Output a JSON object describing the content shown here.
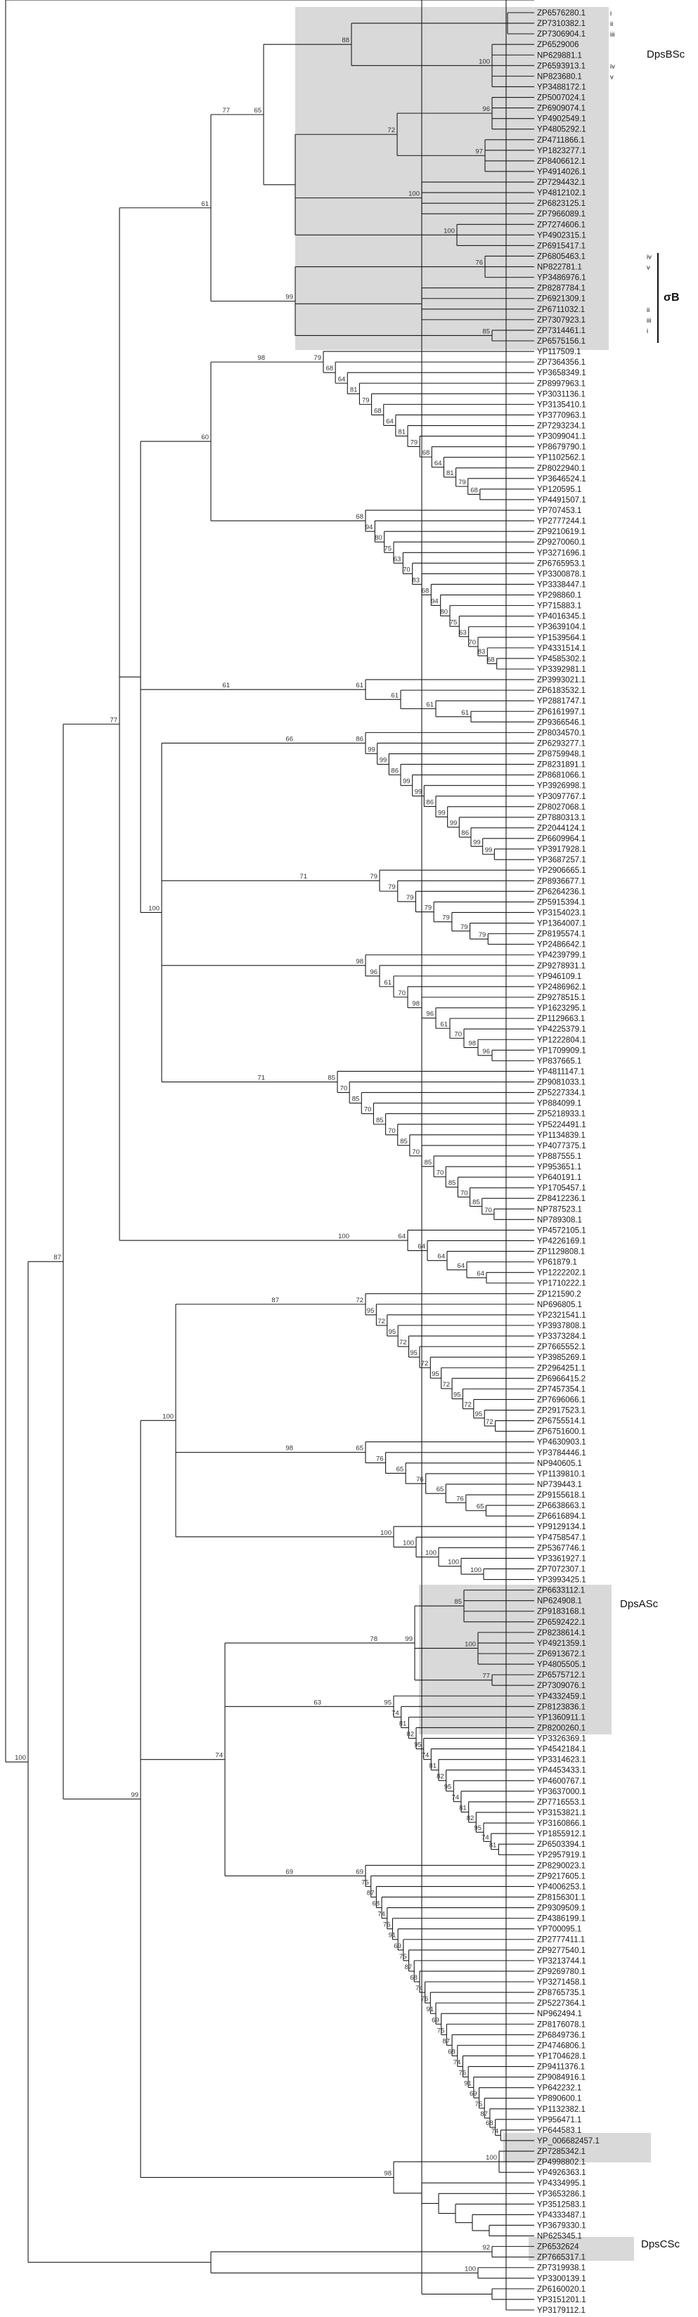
{
  "leaves": [
    "ZP6576280.1",
    "ZP7310382.1",
    "ZP7306904.1",
    "ZP6529006",
    "NP629881.1",
    "ZP6593913.1",
    "NP823680.1",
    "YP3488172.1",
    "ZP5007024.1",
    "ZP6909074.1",
    "YP4902549.1",
    "YP4805292.1",
    "ZP4711866.1",
    "YP1823277.1",
    "ZP8406612.1",
    "YP4914026.1",
    "ZP7294432.1",
    "YP4812102.1",
    "ZP6823125.1",
    "ZP7966089.1",
    "ZP7274606.1",
    "YP4902315.1",
    "ZP6915417.1",
    "ZP6805463.1",
    "NP822781.1",
    "YP3486976.1",
    "ZP8287784.1",
    "ZP6921309.1",
    "ZP6711032.1",
    "ZP7307923.1",
    "ZP7314461.1",
    "ZP6575156.1",
    "YP117509.1",
    "ZP7364356.1",
    "YP3658349.1",
    "ZP8997963.1",
    "YP3031136.1",
    "YP3135410.1",
    "YP3770963.1",
    "ZP7293234.1",
    "YP3099041.1",
    "YP8679790.1",
    "YP1102562.1",
    "ZP8022940.1",
    "YP3646524.1",
    "YP120595.1",
    "YP4491507.1",
    "YP707453.1",
    "YP2777244.1",
    "ZP9210619.1",
    "ZP9270060.1",
    "YP3271696.1",
    "ZP6765953.1",
    "YP3300878.1",
    "YP3338447.1",
    "YP298860.1",
    "YP715883.1",
    "YP4016345.1",
    "YP3639104.1",
    "YP1539564.1",
    "YP4331514.1",
    "YP4585302.1",
    "YP3392981.1",
    "ZP3993021.1",
    "ZP6183532.1",
    "YP2881747.1",
    "ZP6161997.1",
    "ZP9366546.1",
    "ZP8034570.1",
    "ZP6293277.1",
    "ZP8759948.1",
    "ZP8231891.1",
    "ZP8681066.1",
    "YP3926998.1",
    "YP3097767.1",
    "ZP8027068.1",
    "ZP7880313.1",
    "ZP2044124.1",
    "ZP6609964.1",
    "YP3917928.1",
    "YP3687257.1",
    "YP2906665.1",
    "ZP8936677.1",
    "ZP6264236.1",
    "ZP5915394.1",
    "YP3154023.1",
    "YP1364007.1",
    "ZP8195574.1",
    "YP2486642.1",
    "YP4239799.1",
    "ZP9278931.1",
    "YP946109.1",
    "YP2486962.1",
    "ZP9278515.1",
    "YP1623295.1",
    "ZP1129663.1",
    "YP4225379.1",
    "YP1222804.1",
    "YP1709909.1",
    "YP837665.1",
    "YP4811147.1",
    "ZP9081033.1",
    "ZP5227334.1",
    "YP884099.1",
    "ZP5218933.1",
    "YP5224491.1",
    "YP1134839.1",
    "YP4077375.1",
    "YP887555.1",
    "YP953651.1",
    "YP640191.1",
    "YP1705457.1",
    "ZP8412236.1",
    "NP787523.1",
    "NP789308.1",
    "YP4572105.1",
    "YP4226169.1",
    "ZP1129808.1",
    "YP61879.1",
    "YP1222202.1",
    "YP1710222.1",
    "ZP121590.2",
    "NP696805.1",
    "YP2321541.1",
    "YP3937808.1",
    "YP3373284.1",
    "ZP7665552.1",
    "YP3985269.1",
    "ZP2964251.1",
    "ZP6966415.2",
    "ZP7457354.1",
    "ZP7696066.1",
    "ZP2917523.1",
    "ZP6755514.1",
    "ZP6751600.1",
    "YP4630903.1",
    "YP3784446.1",
    "NP940605.1",
    "YP1139810.1",
    "NP739443.1",
    "ZP9155618.1",
    "ZP6638663.1",
    "ZP6616894.1",
    "YP9129134.1",
    "YP4758547.1",
    "ZP5367746.1",
    "YP3361927.1",
    "ZP7072307.1",
    "YP3993425.1",
    "ZP6633112.1",
    "NP624908.1",
    "ZP9183168.1",
    "ZP6592422.1",
    "ZP8238614.1",
    "YP4921359.1",
    "ZP6913672.1",
    "YP4805505.1",
    "ZP6575712.1",
    "ZP7309076.1",
    "YP4332459.1",
    "ZP8123836.1",
    "YP1360911.1",
    "ZP8200260.1",
    "YP3326369.1",
    "YP4542184.1",
    "YP3314623.1",
    "YP4453433.1",
    "YP4600767.1",
    "YP3637000.1",
    "ZP7716553.1",
    "YP3153821.1",
    "YP3160866.1",
    "YP1855912.1",
    "ZP6503394.1",
    "YP2957919.1",
    "ZP8290023.1",
    "ZP9217605.1",
    "YP4006253.1",
    "ZP8156301.1",
    "ZP9309509.1",
    "ZP4386199.1",
    "YP700095.1",
    "ZP2777411.1",
    "ZP9277540.1",
    "YP3213744.1",
    "ZP9269780.1",
    "YP3271458.1",
    "ZP8765735.1",
    "ZP5227364.1",
    "NP962494.1",
    "ZP8176078.1",
    "ZP6849736.1",
    "ZP4746806.1",
    "YP1704628.1",
    "ZP9411376.1",
    "ZP9084916.1",
    "YP642232.1",
    "YP890600.1",
    "YP1132382.1",
    "YP956471.1",
    "YP644583.1",
    "YP_006682457.1",
    "ZP7285342.1",
    "ZP4998802.1",
    "YP4926363.1",
    "YP4334995.1",
    "YP3653286.1",
    "YP3512583.1",
    "YP4333487.1",
    "YP3679330.1",
    "NP625345.1",
    "ZP6532624",
    "ZP7665317.1",
    "ZP7319938.1",
    "YP3300139.1",
    "ZP6160020.1",
    "YP3151201.1",
    "YP3179112.1"
  ],
  "bootstrap": {
    "top_clade": "61",
    "sub_clade": "77",
    "first_split": "65",
    "dpsbsc_node": "88",
    "dpsbsc_inner": "100",
    "node_72": "72",
    "node_97": "97",
    "node_96": "96",
    "node_100a": "100",
    "node_100b": "100",
    "node_100c": "100",
    "sigma_outer": "99",
    "sigma_76": "76",
    "sigma_85": "85",
    "sigma_100": "100",
    "n79": "79",
    "n68": "68",
    "n64": "64",
    "n98a": "98",
    "n81": "81",
    "n68b": "68",
    "n94": "94",
    "n80": "80",
    "n75": "75",
    "n63": "63",
    "n70": "70",
    "n83": "83",
    "n60": "60",
    "n61": "61",
    "n77": "77",
    "n100mid": "100",
    "n86": "86",
    "n66": "66",
    "n99a": "99",
    "n99b": "99",
    "n71": "71",
    "n79b": "79",
    "n98b": "98",
    "n96": "96",
    "n61b": "61",
    "n70b": "70",
    "n71b": "71",
    "n85": "85",
    "n70c": "70",
    "n100d": "100",
    "n87": "87",
    "n100root": "100",
    "n99c": "99",
    "n72": "72",
    "n87b": "87",
    "n100e": "100",
    "n95": "95",
    "n98c": "98",
    "n65": "65",
    "n76": "76",
    "n100f": "100",
    "n99d": "99",
    "n85b": "85",
    "n100g": "100",
    "n77b": "77",
    "n78": "78",
    "n74": "74",
    "n95b": "95",
    "n63b": "63",
    "n74b": "74",
    "n81b": "81",
    "n82": "82",
    "n69": "69",
    "n69b": "69",
    "n75b": "75",
    "n87c": "87",
    "n68c": "68",
    "n74c": "74",
    "n76b": "76",
    "n91": "91",
    "n100h": "100",
    "n98d": "98",
    "n92": "92",
    "n100i": "100",
    "n79c": "79",
    "n90": "90"
  },
  "markers": {
    "dpsb_marks": [
      "i",
      "ii",
      "iii",
      "",
      "",
      "iv",
      "v"
    ],
    "sigma_marks": [
      "iv",
      "v",
      "",
      "",
      "",
      "ii",
      "iii",
      "i"
    ]
  },
  "labels": {
    "dpsbsc": "DpsBSc",
    "sigma_b": "σB",
    "dpsasc": "DpsASc",
    "dpscsc": "DpsCSc"
  },
  "colors": {
    "shade": "#d9d9d9",
    "line": "#1a1a1a"
  }
}
